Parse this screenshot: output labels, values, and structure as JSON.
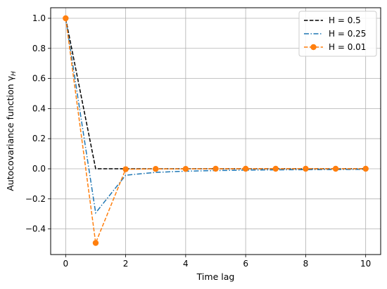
{
  "chart_data": {
    "type": "line",
    "title": "",
    "xlabel": "Time lag",
    "ylabel": "Autocovariance function γ",
    "ylabel_subscript": "H",
    "xlim": [
      -0.5,
      10.5
    ],
    "ylim": [
      -0.57,
      1.07
    ],
    "xticks": [
      0,
      2,
      4,
      6,
      8,
      10
    ],
    "yticks": [
      -0.4,
      -0.2,
      0.0,
      0.2,
      0.4,
      0.6,
      0.8,
      1.0
    ],
    "xtick_labels": [
      "0",
      "2",
      "4",
      "6",
      "8",
      "10"
    ],
    "ytick_labels": [
      "−0.4",
      "−0.2",
      "0.0",
      "0.2",
      "0.4",
      "0.6",
      "0.8",
      "1.0"
    ],
    "grid": true,
    "legend_position": "top-right",
    "x": [
      0,
      1,
      2,
      3,
      4,
      5,
      6,
      7,
      8,
      9,
      10
    ],
    "series": [
      {
        "name": "H = 0.5",
        "color": "#000000",
        "linestyle": "dashed",
        "marker": "none",
        "values": [
          1.0,
          0.0,
          0.0,
          0.0,
          0.0,
          0.0,
          0.0,
          0.0,
          0.0,
          0.0,
          0.0
        ]
      },
      {
        "name": "H = 0.25",
        "color": "#1f77b4",
        "linestyle": "dashdot",
        "marker": "none",
        "values": [
          1.0,
          -0.293,
          -0.043,
          -0.024,
          -0.016,
          -0.012,
          -0.009,
          -0.007,
          -0.006,
          -0.005,
          -0.004
        ]
      },
      {
        "name": "H = 0.01",
        "color": "#ff7f0e",
        "linestyle": "dashed",
        "marker": "circle",
        "values": [
          1.0,
          -0.493,
          -0.003,
          -0.001,
          -0.001,
          0.0,
          0.0,
          0.0,
          0.0,
          0.0,
          0.0
        ]
      }
    ]
  }
}
